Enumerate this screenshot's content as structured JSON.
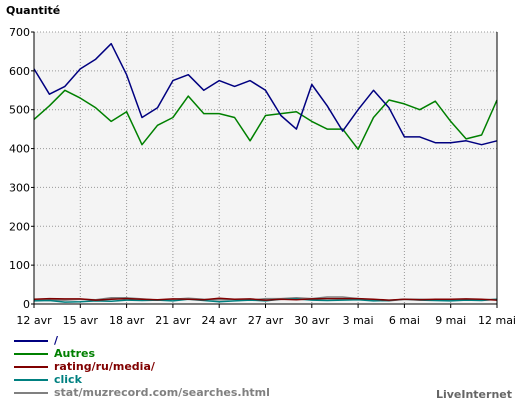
{
  "chart_data": {
    "type": "line",
    "title": "",
    "ylabel": "Quantité",
    "xlabel": "",
    "ylim": [
      0,
      700
    ],
    "yticks": [
      "0",
      "100",
      "200",
      "300",
      "400",
      "500",
      "600",
      "700"
    ],
    "x_tick_labels": [
      "12 avr",
      "15 avr",
      "18 avr",
      "21 avr",
      "24 avr",
      "27 avr",
      "30 avr",
      "3 mai",
      "6 mai",
      "9 mai",
      "12 mai"
    ],
    "grid": true,
    "legend_position": "bottom-left",
    "series": [
      {
        "name": "/",
        "color": "#000080",
        "values": [
          605,
          540,
          560,
          605,
          630,
          670,
          590,
          480,
          505,
          575,
          590,
          550,
          575,
          560,
          575,
          550,
          485,
          450,
          565,
          510,
          445,
          500,
          550,
          505,
          430,
          430,
          415,
          415,
          420,
          410,
          420
        ]
      },
      {
        "name": "Autres",
        "color": "#008000",
        "values": [
          475,
          510,
          550,
          530,
          505,
          470,
          495,
          410,
          460,
          480,
          535,
          490,
          490,
          480,
          420,
          485,
          490,
          495,
          470,
          450,
          450,
          398,
          480,
          525,
          515,
          500,
          522,
          470,
          425,
          435,
          525
        ]
      },
      {
        "name": "rating/ru/media/",
        "color": "#800000",
        "values": [
          12,
          14,
          13,
          13,
          10,
          12,
          14,
          12,
          11,
          13,
          12,
          11,
          15,
          12,
          13,
          10,
          12,
          11,
          13,
          14,
          14,
          14,
          12,
          10,
          12,
          11,
          12,
          12,
          13,
          12,
          10
        ]
      },
      {
        "name": "click",
        "color": "#008080",
        "values": [
          8,
          9,
          5,
          6,
          8,
          7,
          10,
          9,
          10,
          8,
          12,
          9,
          6,
          8,
          10,
          8,
          12,
          13,
          10,
          9,
          10,
          11,
          8,
          9,
          12,
          10,
          9,
          8,
          10,
          9,
          12
        ]
      },
      {
        "name": "stat/muzrecord.com/searches.html",
        "color": "#808080",
        "values": [
          10,
          10,
          10,
          12,
          11,
          16,
          16,
          13,
          10,
          12,
          15,
          12,
          11,
          12,
          10,
          14,
          14,
          16,
          14,
          18,
          18,
          14,
          10,
          8,
          12,
          12,
          11,
          10,
          12,
          11,
          12
        ]
      }
    ]
  },
  "branding": "LiveInternet"
}
